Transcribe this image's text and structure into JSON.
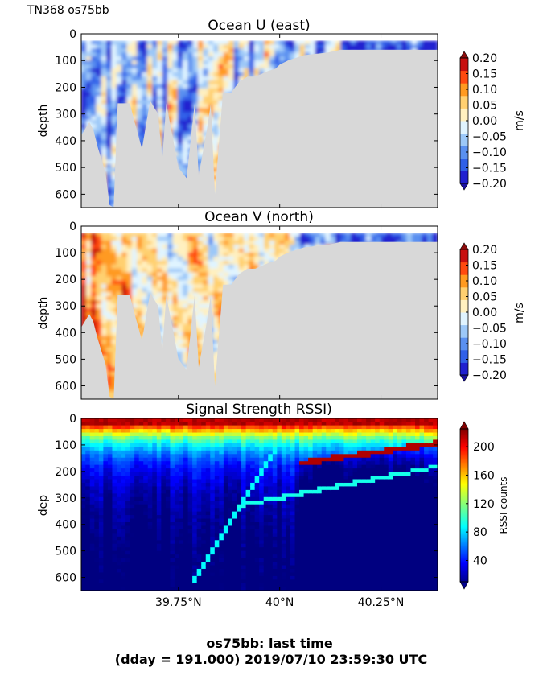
{
  "figure": {
    "corner_label": "TN368 os75bb",
    "footer_line1": "os75bb: last time",
    "footer_line2": "(dday = 191.000) 2019/07/10 23:59:30 UTC"
  },
  "x_axis": {
    "range": [
      39.51,
      40.39
    ],
    "ticks": [
      39.75,
      40.0,
      40.25
    ],
    "tick_labels": [
      "39.75°N",
      "40°N",
      "40.25°N"
    ]
  },
  "chart_data": [
    {
      "type": "heatmap",
      "title": "Ocean U (east)",
      "ylabel": "depth",
      "ylim": [
        650,
        0
      ],
      "yticks": [
        0,
        100,
        200,
        300,
        400,
        500,
        600
      ],
      "ytick_labels": [
        "0",
        "100",
        "200",
        "300",
        "400",
        "500",
        "600"
      ],
      "colorbar": {
        "label": "m/s",
        "range": [
          -0.2,
          0.2
        ],
        "ticks": [
          0.2,
          0.15,
          0.1,
          0.05,
          0.0,
          -0.05,
          -0.1,
          -0.15,
          -0.2
        ],
        "tick_labels": [
          "0.20",
          "0.15",
          "0.10",
          "0.05",
          "0.00",
          "−0.05",
          "−0.10",
          "−0.15",
          "−0.20"
        ],
        "levels": [
          "#2020d0",
          "#3060e8",
          "#5a90f0",
          "#9cc8f8",
          "#e0f4ff",
          "#fff0c0",
          "#ffd070",
          "#ff9a20",
          "#ff4a10",
          "#c81010"
        ]
      },
      "bottom_depth_profile": {
        "lat": [
          39.51,
          39.53,
          39.54,
          39.55,
          39.57,
          39.58,
          39.59,
          39.6,
          39.61,
          39.63,
          39.64,
          39.66,
          39.68,
          39.7,
          39.71,
          39.72,
          39.75,
          39.77,
          39.79,
          39.8,
          39.82,
          39.83,
          39.84,
          39.86,
          39.88,
          39.9,
          39.92,
          39.94,
          39.97,
          39.99,
          40.0,
          40.02,
          40.04,
          40.06,
          40.09,
          40.12,
          40.15,
          40.18,
          40.21,
          40.24,
          40.27,
          40.3,
          40.33,
          40.36,
          40.39
        ],
        "depth": [
          380,
          330,
          360,
          420,
          520,
          640,
          650,
          260,
          260,
          260,
          320,
          430,
          250,
          300,
          470,
          260,
          500,
          540,
          260,
          530,
          360,
          260,
          600,
          220,
          220,
          180,
          160,
          160,
          140,
          130,
          115,
          100,
          90,
          80,
          75,
          70,
          60,
          60,
          60,
          60,
          60,
          60,
          60,
          60,
          60
        ]
      }
    },
    {
      "type": "heatmap",
      "title": "Ocean V (north)",
      "ylabel": "depth",
      "ylim": [
        650,
        0
      ],
      "yticks": [
        0,
        100,
        200,
        300,
        400,
        500,
        600
      ],
      "ytick_labels": [
        "0",
        "100",
        "200",
        "300",
        "400",
        "500",
        "600"
      ],
      "colorbar": {
        "label": "m/s",
        "range": [
          -0.2,
          0.2
        ],
        "ticks": [
          0.2,
          0.15,
          0.1,
          0.05,
          0.0,
          -0.05,
          -0.1,
          -0.15,
          -0.2
        ],
        "tick_labels": [
          "0.20",
          "0.15",
          "0.10",
          "0.05",
          "0.00",
          "−0.05",
          "−0.10",
          "−0.15",
          "−0.20"
        ],
        "levels": [
          "#2020d0",
          "#3060e8",
          "#5a90f0",
          "#9cc8f8",
          "#e0f4ff",
          "#fff0c0",
          "#ffd070",
          "#ff9a20",
          "#ff4a10",
          "#c81010"
        ]
      },
      "bottom_depth_profile": {
        "lat": [
          39.51,
          39.53,
          39.54,
          39.55,
          39.57,
          39.58,
          39.59,
          39.6,
          39.61,
          39.63,
          39.64,
          39.66,
          39.68,
          39.7,
          39.71,
          39.72,
          39.75,
          39.77,
          39.79,
          39.8,
          39.82,
          39.83,
          39.84,
          39.86,
          39.88,
          39.9,
          39.92,
          39.94,
          39.97,
          39.99,
          40.0,
          40.02,
          40.04,
          40.06,
          40.09,
          40.12,
          40.15,
          40.18,
          40.21,
          40.24,
          40.27,
          40.3,
          40.33,
          40.36,
          40.39
        ],
        "depth": [
          380,
          330,
          360,
          420,
          520,
          640,
          650,
          260,
          260,
          260,
          320,
          430,
          250,
          300,
          470,
          260,
          500,
          540,
          260,
          530,
          360,
          260,
          600,
          220,
          220,
          180,
          160,
          160,
          140,
          130,
          115,
          100,
          90,
          80,
          75,
          70,
          60,
          60,
          60,
          60,
          60,
          60,
          60,
          60,
          60
        ]
      }
    },
    {
      "type": "heatmap",
      "title": "Signal Strength RSSI)",
      "ylabel": "dep",
      "ylim": [
        650,
        0
      ],
      "yticks": [
        0,
        100,
        200,
        300,
        400,
        500,
        600
      ],
      "ytick_labels": [
        "0",
        "100",
        "200",
        "300",
        "400",
        "500",
        "600"
      ],
      "colorbar": {
        "label": "RSSI counts",
        "range": [
          10,
          225
        ],
        "ticks": [
          200,
          160,
          120,
          80,
          40
        ],
        "tick_labels": [
          "200",
          "160",
          "120",
          "80",
          "40"
        ],
        "colormap": "jet"
      }
    }
  ]
}
